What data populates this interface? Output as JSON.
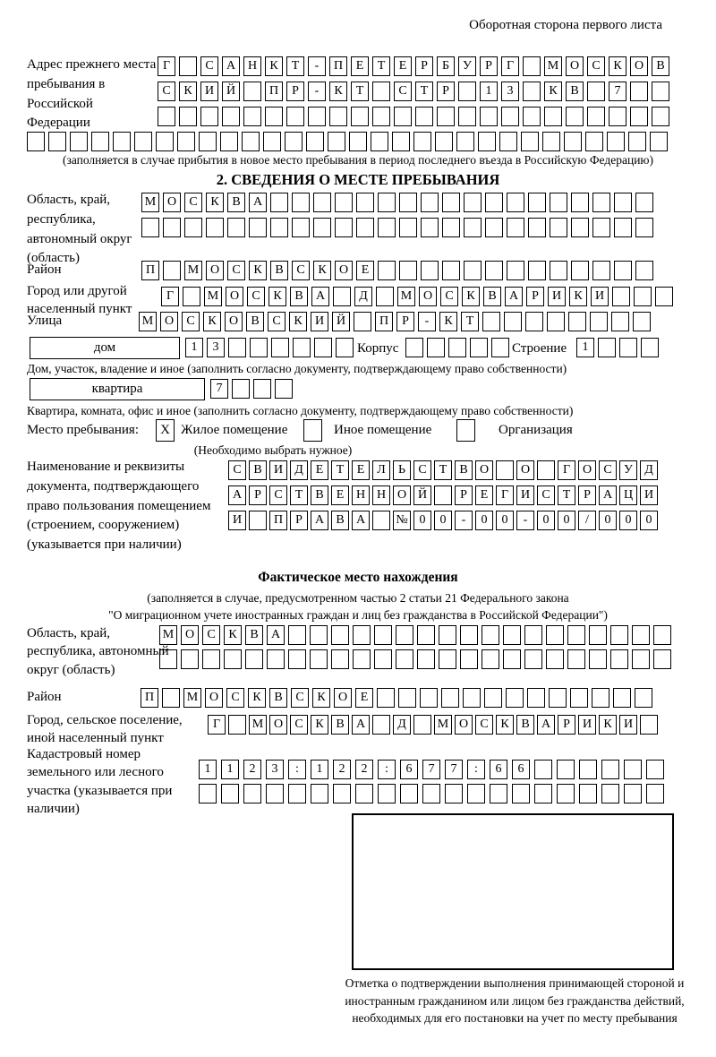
{
  "page": {
    "corner_note": "Оборотная сторона первого листа",
    "section2_title": "2. СВЕДЕНИЯ О МЕСТЕ ПРЕБЫВАНИЯ"
  },
  "prev_address": {
    "label": "Адрес прежнего места пребывания в Российской Федерации",
    "row1": [
      "Г",
      "",
      "С",
      "А",
      "Н",
      "К",
      "Т",
      "-",
      "П",
      "Е",
      "Т",
      "Е",
      "Р",
      "Б",
      "У",
      "Р",
      "Г",
      "",
      "М",
      "О",
      "С",
      "К",
      "О",
      "В"
    ],
    "row2": [
      "С",
      "К",
      "И",
      "Й",
      "",
      "П",
      "Р",
      "-",
      "К",
      "Т",
      "",
      "С",
      "Т",
      "Р",
      "",
      "1",
      "3",
      "",
      "К",
      "В",
      "",
      "7",
      "",
      ""
    ],
    "row3": [
      "",
      "",
      "",
      "",
      "",
      "",
      "",
      "",
      "",
      "",
      "",
      "",
      "",
      "",
      "",
      "",
      "",
      "",
      "",
      "",
      "",
      "",
      "",
      ""
    ],
    "row4": [
      "",
      "",
      "",
      "",
      "",
      "",
      "",
      "",
      "",
      "",
      "",
      "",
      "",
      "",
      "",
      "",
      "",
      "",
      "",
      "",
      "",
      "",
      "",
      "",
      "",
      "",
      "",
      "",
      "",
      ""
    ],
    "note": "(заполняется в случае прибытия в новое место пребывания в период последнего въезда в Российскую Федерацию)"
  },
  "stay": {
    "oblast_label": "Область, край, республика, автономный округ (область)",
    "oblast_row1": [
      "М",
      "О",
      "С",
      "К",
      "В",
      "А",
      "",
      "",
      "",
      "",
      "",
      "",
      "",
      "",
      "",
      "",
      "",
      "",
      "",
      "",
      "",
      "",
      "",
      ""
    ],
    "oblast_row2": [
      "",
      "",
      "",
      "",
      "",
      "",
      "",
      "",
      "",
      "",
      "",
      "",
      "",
      "",
      "",
      "",
      "",
      "",
      "",
      "",
      "",
      "",
      "",
      ""
    ],
    "raion_label": "Район",
    "raion_row": [
      "П",
      "",
      "М",
      "О",
      "С",
      "К",
      "В",
      "С",
      "К",
      "О",
      "Е",
      "",
      "",
      "",
      "",
      "",
      "",
      "",
      "",
      "",
      "",
      "",
      "",
      ""
    ],
    "gorod_label": "Город или другой населенный пункт",
    "gorod_row": [
      "Г",
      "",
      "М",
      "О",
      "С",
      "К",
      "В",
      "А",
      "",
      "Д",
      "",
      "М",
      "О",
      "С",
      "К",
      "В",
      "А",
      "Р",
      "И",
      "К",
      "И",
      "",
      "",
      ""
    ],
    "ulitsa_label": "Улица",
    "ulitsa_row": [
      "М",
      "О",
      "С",
      "К",
      "О",
      "В",
      "С",
      "К",
      "И",
      "Й",
      "",
      "П",
      "Р",
      "-",
      "К",
      "Т",
      "",
      "",
      "",
      "",
      "",
      "",
      "",
      ""
    ],
    "dom_box_label": "дом",
    "dom_cells": [
      "1",
      "3",
      "",
      "",
      "",
      "",
      "",
      ""
    ],
    "korpus_label": "Корпус",
    "korpus_cells": [
      "",
      "",
      "",
      "",
      ""
    ],
    "stroenie_label": "Строение",
    "stroenie_cells": [
      "1",
      "",
      "",
      ""
    ],
    "dom_caption": "Дом, участок, владение и иное (заполнить согласно документу, подтверждающему право собственности)",
    "kvartira_box_label": "квартира",
    "kvartira_cells": [
      "7",
      "",
      "",
      ""
    ],
    "kvartira_caption": "Квартира, комната, офис и иное (заполнить согласно документу, подтверждающему право собственности)",
    "place_label": "Место пребывания:",
    "option1_mark": "X",
    "option1_label": "Жилое помещение",
    "option2_mark": "",
    "option2_label": "Иное помещение",
    "option3_mark": "",
    "option3_label": "Организация",
    "choose_note": "(Необходимо выбрать нужное)",
    "doc_label": "Наименование и реквизиты документа, подтверждающего право пользования помещением (строением, сооружением) (указывается при наличии)",
    "doc_row1": [
      "С",
      "В",
      "И",
      "Д",
      "Е",
      "Т",
      "Е",
      "Л",
      "Ь",
      "С",
      "Т",
      "В",
      "О",
      "",
      "О",
      "",
      "Г",
      "О",
      "С",
      "У",
      "Д"
    ],
    "doc_row2": [
      "А",
      "Р",
      "С",
      "Т",
      "В",
      "Е",
      "Н",
      "Н",
      "О",
      "Й",
      "",
      "Р",
      "Е",
      "Г",
      "И",
      "С",
      "Т",
      "Р",
      "А",
      "Ц",
      "И"
    ],
    "doc_row3": [
      "И",
      "",
      "П",
      "Р",
      "А",
      "В",
      "А",
      "",
      "№",
      "0",
      "0",
      "-",
      "0",
      "0",
      "-",
      "0",
      "0",
      "/",
      "0",
      "0",
      "0"
    ]
  },
  "actual": {
    "title": "Фактическое место нахождения",
    "note1": "(заполняется в случае, предусмотренном частью 2 статьи 21 Федерального закона",
    "note2": "\"О миграционном учете иностранных граждан и лиц без гражданства в Российской Федерации\")",
    "oblast_label": "Область, край, республика, автономный округ (область)",
    "oblast_row1": [
      "М",
      "О",
      "С",
      "К",
      "В",
      "А",
      "",
      "",
      "",
      "",
      "",
      "",
      "",
      "",
      "",
      "",
      "",
      "",
      "",
      "",
      "",
      "",
      "",
      ""
    ],
    "oblast_row2": [
      "",
      "",
      "",
      "",
      "",
      "",
      "",
      "",
      "",
      "",
      "",
      "",
      "",
      "",
      "",
      "",
      "",
      "",
      "",
      "",
      "",
      "",
      "",
      ""
    ],
    "raion_label": "Район",
    "raion_row": [
      "П",
      "",
      "М",
      "О",
      "С",
      "К",
      "В",
      "С",
      "К",
      "О",
      "Е",
      "",
      "",
      "",
      "",
      "",
      "",
      "",
      "",
      "",
      "",
      "",
      "",
      ""
    ],
    "gorod_label": "Город, сельское поселение, иной населенный пункт",
    "gorod_row": [
      "Г",
      "",
      "М",
      "О",
      "С",
      "К",
      "В",
      "А",
      "",
      "Д",
      "",
      "М",
      "О",
      "С",
      "К",
      "В",
      "А",
      "Р",
      "И",
      "К",
      "И",
      ""
    ],
    "cadastre_label": "Кадастровый номер земельного или лесного участка (указывается при наличии)",
    "cadastre_row1": [
      "1",
      "1",
      "2",
      "3",
      ":",
      "1",
      "2",
      "2",
      ":",
      "6",
      "7",
      "7",
      ":",
      "6",
      "6",
      "",
      "",
      "",
      "",
      "",
      ""
    ],
    "cadastre_row2": [
      "",
      "",
      "",
      "",
      "",
      "",
      "",
      "",
      "",
      "",
      "",
      "",
      "",
      "",
      "",
      "",
      "",
      "",
      "",
      "",
      ""
    ]
  },
  "stamp": {
    "caption": "Отметка о подтверждении выполнения принимающей стороной и иностранным гражданином или лицом без гражданства действий, необходимых для его постановки на учет по месту пребывания"
  }
}
